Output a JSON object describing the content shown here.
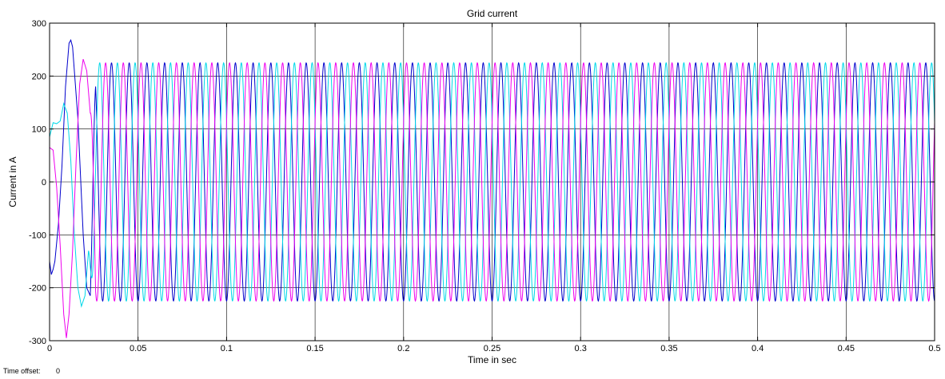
{
  "chart_data": {
    "type": "line",
    "title": "Grid current",
    "xlabel": "Time in sec",
    "ylabel": "Current in A",
    "xlim": [
      0,
      0.5
    ],
    "ylim": [
      -300,
      300
    ],
    "x_ticks": [
      0,
      0.05,
      0.1,
      0.15,
      0.2,
      0.25,
      0.3,
      0.35,
      0.4,
      0.45,
      0.5
    ],
    "x_tick_labels": [
      "0",
      "0.05",
      "0.1",
      "0.15",
      "0.2",
      "0.25",
      "0.3",
      "0.35",
      "0.4",
      "0.45",
      "0.5"
    ],
    "y_ticks": [
      -300,
      -200,
      -100,
      0,
      100,
      200,
      300
    ],
    "y_tick_labels": [
      "-300",
      "-200",
      "-100",
      "0",
      "100",
      "200",
      "300"
    ],
    "grid": true,
    "steady_state": {
      "amplitude_A": 225,
      "frequency_Hz": 100
    },
    "series": [
      {
        "color": "#0000cc",
        "phase_deg": -90,
        "startup": [
          [
            0,
            -150
          ],
          [
            0.001,
            -175
          ],
          [
            0.002,
            -165
          ],
          [
            0.003,
            -150
          ],
          [
            0.005,
            -80
          ],
          [
            0.007,
            30
          ],
          [
            0.009,
            180
          ],
          [
            0.011,
            262
          ],
          [
            0.012,
            268
          ],
          [
            0.013,
            255
          ],
          [
            0.016,
            120
          ],
          [
            0.019,
            -100
          ],
          [
            0.021,
            -200
          ],
          [
            0.023,
            -215
          ]
        ]
      },
      {
        "color": "#00d8e8",
        "phase_deg": 150,
        "startup": [
          [
            0,
            85
          ],
          [
            0.002,
            112
          ],
          [
            0.004,
            110
          ],
          [
            0.006,
            115
          ],
          [
            0.008,
            148
          ],
          [
            0.01,
            130
          ],
          [
            0.012,
            40
          ],
          [
            0.014,
            -100
          ],
          [
            0.016,
            -200
          ],
          [
            0.018,
            -235
          ],
          [
            0.02,
            -215
          ],
          [
            0.022,
            -130
          ]
        ]
      },
      {
        "color": "#ee00ee",
        "phase_deg": 30,
        "startup": [
          [
            0,
            65
          ],
          [
            0.002,
            60
          ],
          [
            0.004,
            -10
          ],
          [
            0.006,
            -120
          ],
          [
            0.008,
            -250
          ],
          [
            0.0095,
            -295
          ],
          [
            0.011,
            -250
          ],
          [
            0.013,
            -130
          ],
          [
            0.015,
            40
          ],
          [
            0.017,
            185
          ],
          [
            0.019,
            232
          ],
          [
            0.021,
            210
          ],
          [
            0.023,
            130
          ]
        ]
      }
    ]
  },
  "footer": {
    "time_offset_label": "Time offset:",
    "time_offset_value": "0"
  }
}
